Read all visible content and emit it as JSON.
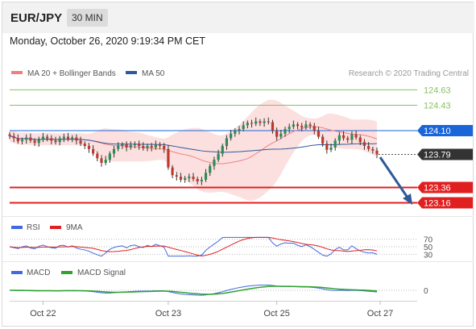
{
  "header": {
    "symbol": "EUR/JPY",
    "timeframe": "30 MIN"
  },
  "datetime": "Monday, October 26, 2020 9:19:34 PM CET",
  "legend": {
    "ma20": "MA 20 + Bollinger Bands",
    "ma50": "MA 50",
    "credit": "Research © 2020 Trading Central"
  },
  "colors": {
    "ma20": "#f08080",
    "ma50": "#2e5a9a",
    "band_fill": "#fbd5d5",
    "up": "#2e8b57",
    "down": "#c0392b",
    "support": "#e02020",
    "resistance": "#8cc060",
    "pivot": "#1a66d9",
    "last_tag": "#333333",
    "rsi": "#4169e1",
    "rsi_ma": "#e02020",
    "macd": "#4169e1",
    "macd_signal": "#2ea32e"
  },
  "chart_data": [
    {
      "type": "candlestick",
      "title": "EUR/JPY 30 MIN",
      "x_ticks": [
        "Oct 22",
        "Oct 23",
        "Oct 25",
        "Oct 27"
      ],
      "ylim": [
        123.05,
        124.75
      ],
      "levels": [
        {
          "label": "124.63",
          "value": 124.63,
          "kind": "resistance"
        },
        {
          "label": "124.43",
          "value": 124.43,
          "kind": "resistance"
        },
        {
          "label": "124.10",
          "value": 124.1,
          "kind": "pivot"
        },
        {
          "label": "123.79",
          "value": 123.79,
          "kind": "last"
        },
        {
          "label": "123.36",
          "value": 123.36,
          "kind": "support"
        },
        {
          "label": "123.16",
          "value": 123.16,
          "kind": "support"
        }
      ],
      "close": [
        124.03,
        124.0,
        123.96,
        123.98,
        124.01,
        123.97,
        123.94,
        123.98,
        124.02,
        124.0,
        123.97,
        123.95,
        124.0,
        124.02,
        123.99,
        124.01,
        123.97,
        123.93,
        123.9,
        123.86,
        123.8,
        123.74,
        123.68,
        123.72,
        123.8,
        123.86,
        123.9,
        123.92,
        123.88,
        123.91,
        123.93,
        123.9,
        123.87,
        123.9,
        123.88,
        123.92,
        123.9,
        123.86,
        123.62,
        123.52,
        123.5,
        123.46,
        123.48,
        123.5,
        123.47,
        123.44,
        123.46,
        123.55,
        123.64,
        123.72,
        123.8,
        123.9,
        124.0,
        124.06,
        124.1,
        124.12,
        124.17,
        124.2,
        124.19,
        124.22,
        124.2,
        124.22,
        124.21,
        124.1,
        124.02,
        124.06,
        124.12,
        124.15,
        124.18,
        124.16,
        124.14,
        124.18,
        124.16,
        124.1,
        124.02,
        123.93,
        123.85,
        123.88,
        123.97,
        124.04,
        124.0,
        123.98,
        124.05,
        124.01,
        123.95,
        123.9,
        123.86,
        123.84,
        123.79
      ],
      "rsi": {
        "levels": [
          70,
          50,
          30
        ],
        "ylim": [
          20,
          80
        ]
      },
      "macd": {
        "levels": [
          0
        ],
        "ylim": [
          -0.3,
          0.3
        ]
      }
    }
  ]
}
